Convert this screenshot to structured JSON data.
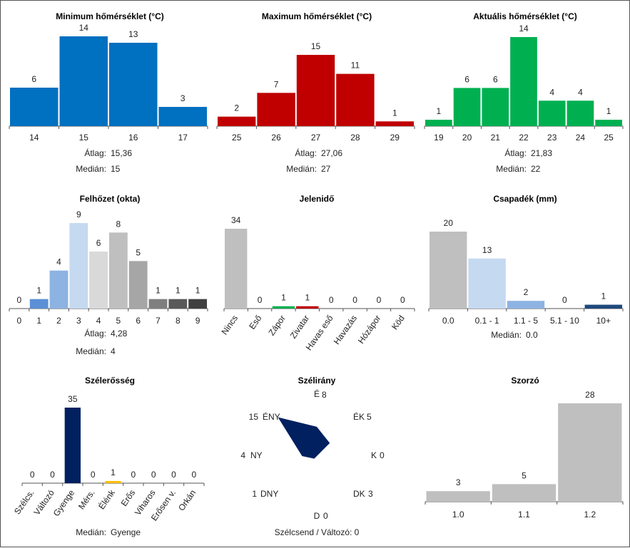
{
  "chart_data": [
    {
      "id": "min",
      "type": "bar",
      "title": "Minimum hőmérséklet (°C)",
      "categories": [
        "14",
        "15",
        "16",
        "17"
      ],
      "values": [
        6,
        14,
        13,
        3
      ],
      "colors": [
        "#0070c0"
      ],
      "stats": [
        {
          "label": "Átlag:",
          "value": "15,36"
        },
        {
          "label": "Medián:",
          "value": "15"
        }
      ]
    },
    {
      "id": "max",
      "type": "bar",
      "title": "Maximum hőmérséklet (°C)",
      "categories": [
        "25",
        "26",
        "27",
        "28",
        "29"
      ],
      "values": [
        2,
        7,
        15,
        11,
        1
      ],
      "colors": [
        "#c00000"
      ],
      "stats": [
        {
          "label": "Átlag:",
          "value": "27,06"
        },
        {
          "label": "Medián:",
          "value": "27"
        }
      ]
    },
    {
      "id": "act",
      "type": "bar",
      "title": "Aktuális hőmérséklet (°C)",
      "categories": [
        "19",
        "20",
        "21",
        "22",
        "23",
        "24",
        "25"
      ],
      "values": [
        1,
        6,
        6,
        14,
        4,
        4,
        1
      ],
      "colors": [
        "#00b050"
      ],
      "stats": [
        {
          "label": "Átlag:",
          "value": "21,83"
        },
        {
          "label": "Medián:",
          "value": "22"
        }
      ]
    },
    {
      "id": "cloud",
      "type": "bar",
      "title": "Felhőzet (okta)",
      "categories": [
        "0",
        "1",
        "2",
        "3",
        "4",
        "5",
        "6",
        "7",
        "8",
        "9"
      ],
      "values": [
        0,
        1,
        4,
        9,
        6,
        8,
        5,
        1,
        1,
        1
      ],
      "colors": [
        "#ffffff",
        "#5b8fd6",
        "#8db3e2",
        "#c5d9f1",
        "#d9d9d9",
        "#bfbfbf",
        "#a6a6a6",
        "#7f7f7f",
        "#595959",
        "#404040"
      ],
      "stats": [
        {
          "label": "Átlag:",
          "value": "4,28"
        },
        {
          "label": "Medián:",
          "value": "4"
        }
      ]
    },
    {
      "id": "weather",
      "type": "bar",
      "title": "Jelenidő",
      "categories": [
        "Nincs",
        "Eső",
        "Zápor",
        "Zivatar",
        "Havas eső",
        "Havazás",
        "Hózápor",
        "Köd"
      ],
      "values": [
        34,
        0,
        1,
        1,
        0,
        0,
        0,
        0
      ],
      "colors": [
        "#bfbfbf",
        "#bfbfbf",
        "#00b050",
        "#c00000",
        "#bfbfbf",
        "#bfbfbf",
        "#bfbfbf",
        "#bfbfbf"
      ],
      "rotated_labels": true,
      "stats": []
    },
    {
      "id": "precip",
      "type": "bar",
      "title": "Csapadék (mm)",
      "categories": [
        "0.0",
        "0.1 - 1",
        "1.1 - 5",
        "5.1 - 10",
        "10+"
      ],
      "values": [
        20,
        13,
        2,
        0,
        1
      ],
      "colors": [
        "#bfbfbf",
        "#c5d9f1",
        "#8db3e2",
        "#5b8fd6",
        "#1f497d"
      ],
      "stats": [
        {
          "label": "Medián:",
          "value": "0.0"
        }
      ]
    },
    {
      "id": "windstr",
      "type": "bar",
      "title": "Szélerősség",
      "categories": [
        "Szélcs.",
        "Változó",
        "Gyenge",
        "Mérs.",
        "Élénk",
        "Erős",
        "Viharos",
        "Erősen v.",
        "Orkán"
      ],
      "values": [
        0,
        0,
        35,
        0,
        1,
        0,
        0,
        0,
        0
      ],
      "colors": [
        "#002060",
        "#002060",
        "#002060",
        "#002060",
        "#ffc000",
        "#002060",
        "#002060",
        "#002060",
        "#002060"
      ],
      "rotated_labels": true,
      "stats": [
        {
          "label": "Medián:",
          "value": "Gyenge"
        }
      ]
    },
    {
      "id": "winddir",
      "type": "radar",
      "title": "Szélirány",
      "directions": [
        {
          "label": "É",
          "value": 8
        },
        {
          "label": "ÉK",
          "value": 5
        },
        {
          "label": "K",
          "value": 0
        },
        {
          "label": "DK",
          "value": 3
        },
        {
          "label": "D",
          "value": 0
        },
        {
          "label": "DNY",
          "value": 1
        },
        {
          "label": "NY",
          "value": 4
        },
        {
          "label": "ÉNY",
          "value": 15
        }
      ],
      "fill": "#002060",
      "footer": "Szélcsend / Változó: 0"
    },
    {
      "id": "mult",
      "type": "bar",
      "title": "Szorzó",
      "categories": [
        "1.0",
        "1.1",
        "1.2"
      ],
      "values": [
        3,
        5,
        28
      ],
      "colors": [
        "#bfbfbf"
      ],
      "stats": []
    }
  ]
}
